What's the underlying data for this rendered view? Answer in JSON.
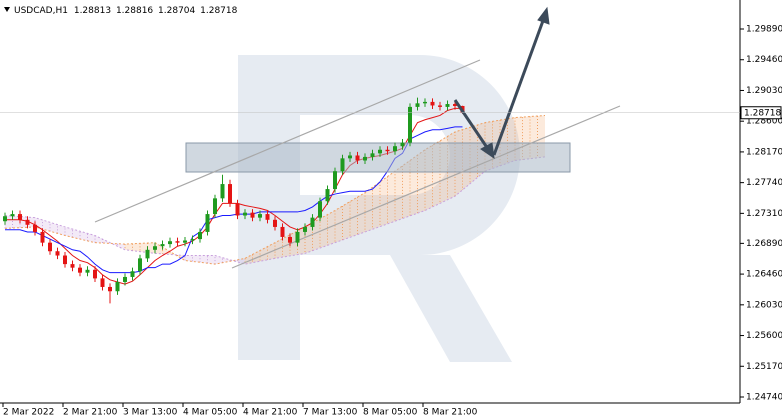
{
  "chart_data": {
    "type": "candlestick",
    "symbol": "USDCAD,H1",
    "categories": [
      "2 Mar 2022",
      null,
      null,
      null,
      null,
      null,
      null,
      null,
      "2 Mar 21:00",
      null,
      null,
      null,
      null,
      null,
      null,
      null,
      "3 Mar 13:00",
      null,
      null,
      null,
      null,
      null,
      null,
      null,
      "4 Mar 05:00",
      null,
      null,
      null,
      null,
      null,
      null,
      null,
      "4 Mar 21:00",
      null,
      null,
      null,
      null,
      null,
      null,
      null,
      "7 Mar 13:00",
      null,
      null,
      null,
      null,
      null,
      null,
      null,
      "8 Mar 05:00",
      null,
      null,
      null,
      null,
      null,
      null,
      null,
      "8 Mar 21:00",
      null,
      null,
      null,
      null,
      null
    ],
    "open": [
      1.272,
      1.2727,
      1.273,
      1.2722,
      1.2715,
      1.2705,
      1.269,
      1.2678,
      1.2672,
      1.266,
      1.2655,
      1.2648,
      1.2652,
      1.264,
      1.2628,
      1.2622,
      1.2635,
      1.2642,
      1.265,
      1.2668,
      1.268,
      1.2685,
      1.2688,
      1.2692,
      1.269,
      1.2693,
      1.2695,
      1.2705,
      1.273,
      1.2752,
      1.2772,
      1.2745,
      1.2728,
      1.2732,
      1.2725,
      1.273,
      1.2722,
      1.2712,
      1.2698,
      1.269,
      1.2705,
      1.2712,
      1.2725,
      1.2748,
      1.2765,
      1.279,
      1.2808,
      1.2812,
      1.2805,
      1.281,
      1.2815,
      1.282,
      1.2818,
      1.2825,
      1.283,
      1.288,
      1.2885,
      1.2887,
      1.2882,
      1.288,
      1.2884,
      1.28813
    ],
    "high": [
      1.2732,
      1.2735,
      1.2735,
      1.2727,
      1.272,
      1.271,
      1.2695,
      1.2683,
      1.2677,
      1.2665,
      1.266,
      1.2657,
      1.2657,
      1.2645,
      1.2633,
      1.264,
      1.2647,
      1.2655,
      1.2673,
      1.2685,
      1.269,
      1.2693,
      1.2697,
      1.2697,
      1.2698,
      1.27,
      1.271,
      1.2735,
      1.2757,
      1.2785,
      1.2778,
      1.275,
      1.2737,
      1.2737,
      1.2735,
      1.2735,
      1.2727,
      1.2717,
      1.2703,
      1.271,
      1.2717,
      1.273,
      1.2753,
      1.277,
      1.2795,
      1.2813,
      1.2817,
      1.2817,
      1.2815,
      1.282,
      1.2825,
      1.2825,
      1.283,
      1.2835,
      1.2885,
      1.2893,
      1.2892,
      1.2892,
      1.2887,
      1.2889,
      1.2889,
      1.28816
    ],
    "low": [
      1.2715,
      1.2722,
      1.2717,
      1.271,
      1.27,
      1.2685,
      1.2673,
      1.2667,
      1.2655,
      1.265,
      1.2643,
      1.2643,
      1.2635,
      1.2623,
      1.2605,
      1.2617,
      1.263,
      1.2637,
      1.2645,
      1.2663,
      1.2675,
      1.268,
      1.2683,
      1.2685,
      1.2685,
      1.2688,
      1.269,
      1.27,
      1.2725,
      1.2747,
      1.274,
      1.2723,
      1.2723,
      1.272,
      1.272,
      1.2717,
      1.2707,
      1.2693,
      1.2685,
      1.2685,
      1.27,
      1.2707,
      1.272,
      1.2743,
      1.276,
      1.2785,
      1.2803,
      1.28,
      1.28,
      1.2805,
      1.281,
      1.2813,
      1.2813,
      1.282,
      1.2825,
      1.2875,
      1.288,
      1.2877,
      1.2875,
      1.2875,
      1.2876,
      1.28704
    ],
    "close": [
      1.2727,
      1.273,
      1.2722,
      1.2715,
      1.2705,
      1.269,
      1.2678,
      1.2672,
      1.266,
      1.2655,
      1.2648,
      1.2652,
      1.264,
      1.2628,
      1.2622,
      1.2635,
      1.2642,
      1.265,
      1.2668,
      1.268,
      1.2685,
      1.2688,
      1.2692,
      1.269,
      1.2693,
      1.2695,
      1.2705,
      1.273,
      1.2752,
      1.2772,
      1.2745,
      1.2728,
      1.2732,
      1.2725,
      1.273,
      1.2722,
      1.2712,
      1.2698,
      1.269,
      1.2705,
      1.2712,
      1.2725,
      1.2748,
      1.2765,
      1.279,
      1.2808,
      1.2812,
      1.2805,
      1.281,
      1.2815,
      1.282,
      1.2818,
      1.2825,
      1.283,
      1.288,
      1.2885,
      1.2887,
      1.2882,
      1.288,
      1.2884,
      1.28813,
      1.28718
    ],
    "up_color": "#1f9a1f",
    "down_color": "#e41414",
    "indicator_lines": [
      {
        "color": "#e41414",
        "values": [
          1.2722,
          1.2722,
          1.2722,
          1.272,
          1.2715,
          1.2708,
          1.27,
          1.2692,
          1.2682,
          1.2672,
          1.2665,
          1.2662,
          1.2655,
          1.2645,
          1.2638,
          1.2635,
          1.2632,
          1.2636,
          1.2645,
          1.2655,
          1.2665,
          1.2672,
          1.2678,
          1.2685,
          1.2688,
          1.2692,
          1.27,
          1.2712,
          1.273,
          1.2745,
          1.2745,
          1.2745,
          1.2742,
          1.274,
          1.2738,
          1.2735,
          1.2728,
          1.272,
          1.2712,
          1.2708,
          1.2712,
          1.2718,
          1.273,
          1.2745,
          1.2765,
          1.2785,
          1.2798,
          1.2805,
          1.2808,
          1.281,
          1.2812,
          1.2815,
          1.2818,
          1.2822,
          1.284,
          1.2858,
          1.2862,
          1.2865,
          1.2868,
          1.2875,
          1.2878,
          1.2878
        ]
      },
      {
        "color": "#1a1aff",
        "values": [
          1.2708,
          1.2708,
          1.2708,
          1.2705,
          1.2705,
          1.27,
          1.2695,
          1.269,
          1.2685,
          1.268,
          1.2678,
          1.267,
          1.266,
          1.2652,
          1.2648,
          1.2648,
          1.2648,
          1.2648,
          1.265,
          1.2655,
          1.2655,
          1.266,
          1.266,
          1.2665,
          1.2672,
          1.2698,
          1.2705,
          1.2722,
          1.2725,
          1.2728,
          1.2728,
          1.273,
          1.273,
          1.273,
          1.2733,
          1.2733,
          1.2733,
          1.2733,
          1.2733,
          1.2733,
          1.2735,
          1.274,
          1.2748,
          1.2755,
          1.2758,
          1.276,
          1.2762,
          1.2762,
          1.2762,
          1.2765,
          1.2775,
          1.279,
          1.2808,
          1.2815,
          1.2835,
          1.284,
          1.2845,
          1.2848,
          1.2848,
          1.285,
          1.2852,
          1.2852
        ]
      }
    ],
    "cloud": {
      "x": [
        0,
        4,
        8,
        12,
        16,
        20,
        24,
        28,
        32,
        36,
        40,
        44,
        48,
        52,
        56,
        60,
        64,
        68,
        72
      ],
      "span_a": [
        1.271,
        1.2712,
        1.27,
        1.269,
        1.2688,
        1.269,
        1.2665,
        1.266,
        1.2668,
        1.269,
        1.2712,
        1.2735,
        1.276,
        1.279,
        1.282,
        1.2845,
        1.2858,
        1.2865,
        1.2868
      ],
      "span_b": [
        1.2728,
        1.2725,
        1.2712,
        1.27,
        1.268,
        1.2675,
        1.2672,
        1.2672,
        1.266,
        1.2668,
        1.2675,
        1.269,
        1.2705,
        1.272,
        1.2735,
        1.2755,
        1.279,
        1.2805,
        1.281
      ],
      "up_color": "#f0a060",
      "down_color": "#c8a0dc"
    },
    "ylim": [
      1.24656,
      1.30296
    ],
    "yticks": [
      {
        "value": 1.2989,
        "label": "1.29890"
      },
      {
        "value": 1.2946,
        "label": "1.29460"
      },
      {
        "value": 1.2903,
        "label": "1.29030"
      },
      {
        "value": 1.286,
        "label": "1.28600"
      },
      {
        "value": 1.2817,
        "label": "1.28170"
      },
      {
        "value": 1.2774,
        "label": "1.27740"
      },
      {
        "value": 1.2731,
        "label": "1.27310"
      },
      {
        "value": 1.2689,
        "label": "1.26890"
      },
      {
        "value": 1.2646,
        "label": "1.26460"
      },
      {
        "value": 1.2603,
        "label": "1.26030"
      },
      {
        "value": 1.256,
        "label": "1.25600"
      },
      {
        "value": 1.2517,
        "label": "1.25170"
      },
      {
        "value": 1.2474,
        "label": "1.24740"
      }
    ]
  }
}
